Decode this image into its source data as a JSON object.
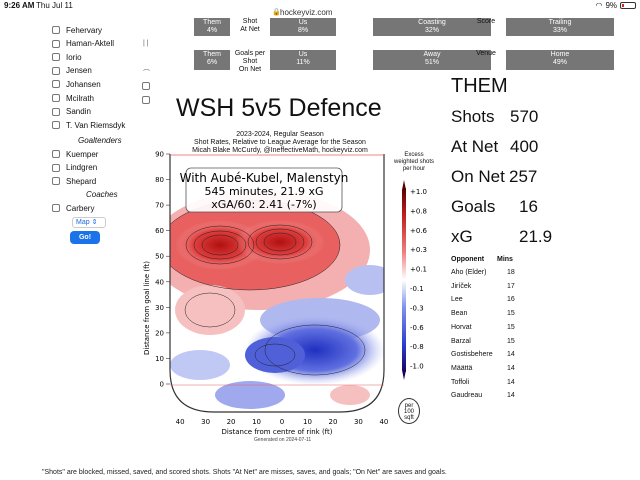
{
  "status_bar": {
    "time": "9:26 AM",
    "date": "Thu Jul 11",
    "url": "hockeyviz.com",
    "battery": "9%"
  },
  "sidebar": {
    "players": [
      "Fehervary",
      "Haman-Aktell",
      "Iorio",
      "Jensen",
      "Johansen",
      "Mcilrath",
      "Sandin",
      "T. Van Riemsdyk"
    ],
    "goaltenders_label": "Goaltenders",
    "goaltenders": [
      "Kuemper",
      "Lindgren",
      "Shepard"
    ],
    "coaches_label": "Coaches",
    "coaches": [
      "Carbery"
    ],
    "map_select": "Map",
    "go_button": "Go!"
  },
  "comparison": {
    "row0": {
      "them": "Them\n4%",
      "label": "Shot\nAt Net",
      "us": "Us\n8%",
      "away": "Coasting\n32%",
      "mid": "Score",
      "home": "Trailing\n33%"
    },
    "row1": {
      "them": "Them\n6%",
      "label": "Goals per\nShot\nOn Net",
      "us": "Us\n11%",
      "away": "Away\n51%",
      "mid": "Venue",
      "home": "Home\n49%"
    }
  },
  "chart": {
    "title": "WSH 5v5 Defence",
    "subtitle_1": "2023-2024, Regular Season",
    "subtitle_2": "Shot Rates, Relative to League Average for the Season",
    "subtitle_3": "Micah Blake McCurdy, @IneffectiveMath, hockeyviz.com",
    "annotation_1": "With Aubé-Kubel, Malenstyn",
    "annotation_2": "545 minutes, 21.9 xG",
    "annotation_3": "xGA/60: 2.41 (-7%)",
    "legend_title": "Excess\nweighted shots\nper hour",
    "per100": "per\n100\nsqft",
    "generated": "Generated on 2024-07-11",
    "colors": {
      "high": "#c41e1e",
      "low": "#2b3fd0",
      "neutral": "#ffffff"
    }
  },
  "chart_data": {
    "type": "heatmap",
    "title": "WSH 5v5 Defence",
    "xlabel": "Distance from centre of rink (ft)",
    "ylabel": "Distance from goal line (ft)",
    "x_ticks": [
      "40",
      "30",
      "20",
      "10",
      "0",
      "10",
      "20",
      "30",
      "40"
    ],
    "y_ticks": [
      "0",
      "10",
      "20",
      "30",
      "40",
      "50",
      "60",
      "70",
      "80",
      "90"
    ],
    "xlim": [
      -42,
      42
    ],
    "ylim": [
      -10,
      90
    ],
    "colorbar_ticks": [
      "+1.0",
      "+0.8",
      "+0.6",
      "+0.3",
      "+0.1",
      "-0.1",
      "-0.3",
      "-0.6",
      "-0.8",
      "-1.0"
    ],
    "colorbar_range": [
      -1.0,
      1.0
    ]
  },
  "stats": {
    "them_label": "THEM",
    "rows": [
      {
        "label": "Shots",
        "value": "570"
      },
      {
        "label": "At Net",
        "value": "400"
      },
      {
        "label": "On Net",
        "value": "257"
      },
      {
        "label": "Goals",
        "value": "16"
      },
      {
        "label": "xG",
        "value": "21.9"
      }
    ]
  },
  "opponents": {
    "header_name": "Opponent",
    "header_mins": "Mins",
    "rows": [
      {
        "name": "Aho (Elder)",
        "mins": "18"
      },
      {
        "name": "Jiríček",
        "mins": "17"
      },
      {
        "name": "Lee",
        "mins": "16"
      },
      {
        "name": "Bean",
        "mins": "15"
      },
      {
        "name": "Horvat",
        "mins": "15"
      },
      {
        "name": "Barzal",
        "mins": "15"
      },
      {
        "name": "Gostisbehere",
        "mins": "14"
      },
      {
        "name": "Määttä",
        "mins": "14"
      },
      {
        "name": "Toffoli",
        "mins": "14"
      },
      {
        "name": "Gaudreau",
        "mins": "14"
      }
    ]
  },
  "footnote": "\"Shots\" are blocked, missed, saved, and scored shots. Shots \"At Net\" are misses, saves, and goals; \"On Net\" are saves and goals."
}
